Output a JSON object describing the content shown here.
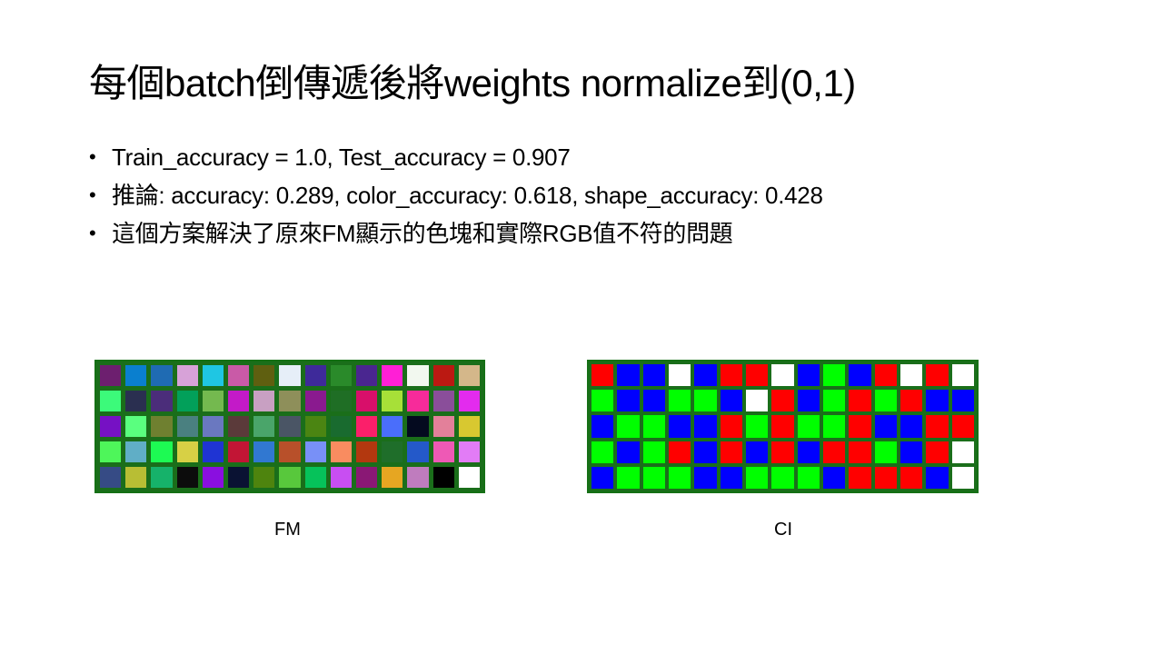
{
  "slide": {
    "title": "每個batch倒傳遞後將weights normalize到(0,1)",
    "bullets": [
      "Train_accuracy = 1.0, Test_accuracy = 0.907",
      "推論: accuracy: 0.289, color_accuracy: 0.618, shape_accuracy: 0.428",
      "這個方案解決了原來FM顯示的色塊和實際RGB值不符的問題"
    ]
  },
  "fm": {
    "caption": "FM",
    "colors": [
      [
        "#6d1f6f",
        "#0a7fcf",
        "#1f6bb3",
        "#d7a2d8",
        "#1fc6e3",
        "#c95aa7",
        "#5f5f10",
        "#e6eef8",
        "#3e2a9a",
        "#2a8a2a",
        "#4a2690",
        "#ff1fd6",
        "#f2f8ef",
        "#bb1912",
        "#d4b78a"
      ],
      [
        "#3cfa7a",
        "#2a2f50",
        "#4b2d7a",
        "#02a05a",
        "#74b94f",
        "#c31ac8",
        "#c8a0c2",
        "#8e8f5a",
        "#8a1a8f",
        "#1f6e25",
        "#d80f6a",
        "#a7e038",
        "#f72b9a",
        "#8a4e9a",
        "#e32bee"
      ],
      [
        "#7611c4",
        "#5aff7f",
        "#6f8030",
        "#4a8080",
        "#6a78c0",
        "#5b3a3a",
        "#4aa56a",
        "#4a5565",
        "#4b8512",
        "#196b2f",
        "#fb1f6a",
        "#4a6efb",
        "#040a1f",
        "#e3809a",
        "#d8c830"
      ],
      [
        "#4ef65a",
        "#60aec6",
        "#1dfa53",
        "#d7d045",
        "#1f34d3",
        "#c21535",
        "#3178d1",
        "#b8502a",
        "#7890f7",
        "#f98c60",
        "#b3380f",
        "#1f6e2a",
        "#2459c9",
        "#ee59b5",
        "#e27cf6"
      ],
      [
        "#364b85",
        "#b8be34",
        "#16b26a",
        "#0c0c0c",
        "#8a0fe0",
        "#0a1233",
        "#4e840e",
        "#58c83c",
        "#06c25a",
        "#c84ef2",
        "#8a1875",
        "#e6a622",
        "#bf7cbe",
        "#000000",
        "#ffffff"
      ]
    ]
  },
  "ci": {
    "caption": "CI",
    "colors": [
      [
        "#ff0000",
        "#0000ff",
        "#0000ff",
        "#ffffff",
        "#0000ff",
        "#ff0000",
        "#ff0000",
        "#ffffff",
        "#0000ff",
        "#00ff00",
        "#0000ff",
        "#ff0000",
        "#ffffff",
        "#ff0000",
        "#ffffff"
      ],
      [
        "#00ff00",
        "#0000ff",
        "#0000ff",
        "#00ff00",
        "#00ff00",
        "#0000ff",
        "#ffffff",
        "#ff0000",
        "#0000ff",
        "#00ff00",
        "#ff0000",
        "#00ff00",
        "#ff0000",
        "#0000ff",
        "#0000ff"
      ],
      [
        "#0000ff",
        "#00ff00",
        "#00ff00",
        "#0000ff",
        "#0000ff",
        "#ff0000",
        "#00ff00",
        "#ff0000",
        "#00ff00",
        "#00ff00",
        "#ff0000",
        "#0000ff",
        "#0000ff",
        "#ff0000",
        "#ff0000"
      ],
      [
        "#00ff00",
        "#0000ff",
        "#00ff00",
        "#ff0000",
        "#0000ff",
        "#ff0000",
        "#0000ff",
        "#ff0000",
        "#0000ff",
        "#ff0000",
        "#ff0000",
        "#00ff00",
        "#0000ff",
        "#ff0000",
        "#ffffff"
      ],
      [
        "#0000ff",
        "#00ff00",
        "#00ff00",
        "#00ff00",
        "#0000ff",
        "#0000ff",
        "#00ff00",
        "#00ff00",
        "#00ff00",
        "#0000ff",
        "#ff0000",
        "#ff0000",
        "#ff0000",
        "#0000ff",
        "#ffffff"
      ]
    ]
  }
}
